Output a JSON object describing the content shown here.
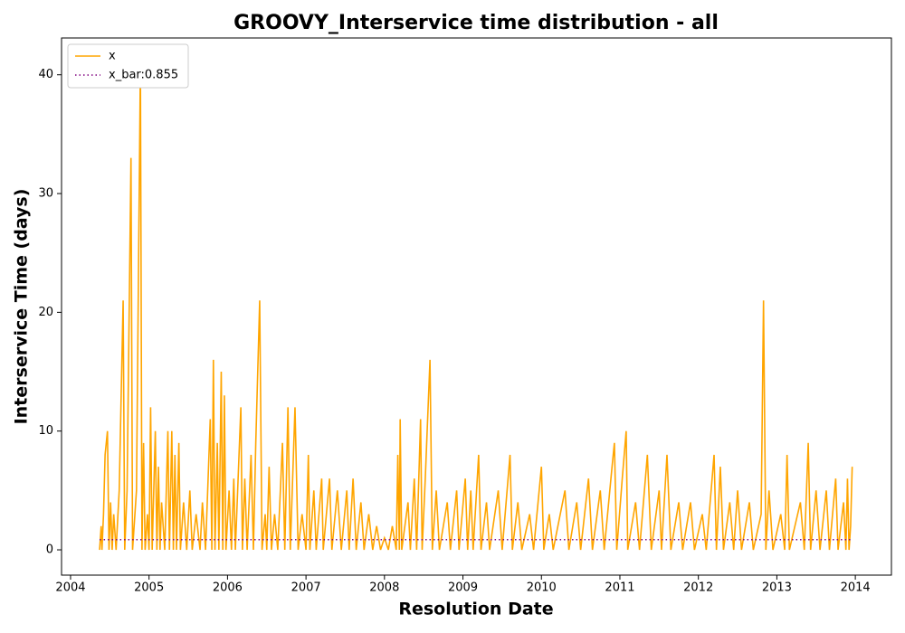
{
  "chart_data": {
    "type": "line",
    "title": "GROOVY_Interservice time distribution - all",
    "xlabel": "Resolution Date",
    "ylabel": "Interservice Time (days)",
    "xlim": [
      2003.885,
      2014.46
    ],
    "ylim": [
      -2.13,
      43.1
    ],
    "xticks": [
      2004,
      2005,
      2006,
      2007,
      2008,
      2009,
      2010,
      2011,
      2012,
      2013,
      2014
    ],
    "yticks": [
      0,
      10,
      20,
      30,
      40
    ],
    "legend": "upper left",
    "series": [
      {
        "name": "x",
        "color": "#ffa500",
        "style": "solid",
        "x": [
          2004.37,
          2004.39,
          2004.4,
          2004.42,
          2004.44,
          2004.47,
          2004.49,
          2004.51,
          2004.53,
          2004.55,
          2004.58,
          2004.62,
          2004.67,
          2004.69,
          2004.72,
          2004.77,
          2004.79,
          2004.84,
          2004.89,
          2004.91,
          2004.93,
          2004.95,
          2004.98,
          2005.0,
          2005.02,
          2005.04,
          2005.06,
          2005.08,
          2005.1,
          2005.12,
          2005.14,
          2005.16,
          2005.2,
          2005.24,
          2005.26,
          2005.29,
          2005.31,
          2005.33,
          2005.35,
          2005.38,
          2005.4,
          2005.44,
          2005.48,
          2005.52,
          2005.55,
          2005.6,
          2005.65,
          2005.68,
          2005.72,
          2005.78,
          2005.8,
          2005.82,
          2005.84,
          2005.87,
          2005.89,
          2005.92,
          2005.94,
          2005.96,
          2005.98,
          2006.02,
          2006.05,
          2006.08,
          2006.1,
          2006.17,
          2006.19,
          2006.22,
          2006.25,
          2006.3,
          2006.33,
          2006.36,
          2006.41,
          2006.44,
          2006.48,
          2006.5,
          2006.53,
          2006.56,
          2006.6,
          2006.64,
          2006.7,
          2006.73,
          2006.77,
          2006.8,
          2006.86,
          2006.9,
          2006.95,
          2007.0,
          2007.03,
          2007.05,
          2007.1,
          2007.13,
          2007.2,
          2007.22,
          2007.3,
          2007.33,
          2007.4,
          2007.45,
          2007.52,
          2007.55,
          2007.6,
          2007.64,
          2007.7,
          2007.74,
          2007.8,
          2007.85,
          2007.9,
          2007.95,
          2008.0,
          2008.05,
          2008.1,
          2008.15,
          2008.17,
          2008.19,
          2008.2,
          2008.22,
          2008.3,
          2008.33,
          2008.38,
          2008.41,
          2008.46,
          2008.48,
          2008.52,
          2008.58,
          2008.61,
          2008.66,
          2008.7,
          2008.8,
          2008.84,
          2008.92,
          2008.95,
          2009.03,
          2009.06,
          2009.1,
          2009.13,
          2009.2,
          2009.23,
          2009.3,
          2009.34,
          2009.45,
          2009.5,
          2009.6,
          2009.63,
          2009.7,
          2009.75,
          2009.85,
          2009.9,
          2010.0,
          2010.03,
          2010.1,
          2010.15,
          2010.3,
          2010.35,
          2010.45,
          2010.5,
          2010.6,
          2010.65,
          2010.75,
          2010.8,
          2010.9,
          2010.93,
          2010.96,
          2011.03,
          2011.08,
          2011.1,
          2011.2,
          2011.25,
          2011.35,
          2011.4,
          2011.5,
          2011.53,
          2011.6,
          2011.65,
          2011.75,
          2011.8,
          2011.9,
          2011.95,
          2012.05,
          2012.1,
          2012.2,
          2012.23,
          2012.28,
          2012.32,
          2012.4,
          2012.45,
          2012.5,
          2012.55,
          2012.65,
          2012.7,
          2012.8,
          2012.83,
          2012.86,
          2012.9,
          2012.95,
          2013.05,
          2013.1,
          2013.13,
          2013.16,
          2013.3,
          2013.35,
          2013.4,
          2013.43,
          2013.5,
          2013.55,
          2013.63,
          2013.67,
          2013.75,
          2013.78,
          2013.85,
          2013.88,
          2013.9,
          2013.92,
          2013.94,
          2013.96
        ],
        "values": [
          0,
          2,
          0,
          3,
          8,
          10,
          0,
          4,
          0,
          3,
          0,
          5,
          21,
          0,
          5,
          33,
          0,
          5,
          41,
          0,
          9,
          0,
          3,
          0,
          12,
          0,
          5,
          10,
          0,
          7,
          0,
          4,
          0,
          10,
          0,
          10,
          0,
          8,
          0,
          9,
          0,
          4,
          0,
          5,
          0,
          3,
          0,
          4,
          0,
          11,
          0,
          16,
          0,
          9,
          0,
          15,
          0,
          13,
          0,
          5,
          0,
          6,
          0,
          12,
          0,
          6,
          0,
          8,
          0,
          9,
          21,
          0,
          3,
          0,
          7,
          0,
          3,
          0,
          9,
          0,
          12,
          0,
          12,
          0,
          3,
          0,
          8,
          0,
          5,
          0,
          6,
          0,
          6,
          0,
          5,
          0,
          5,
          0,
          6,
          0,
          4,
          0,
          3,
          0,
          2,
          0,
          1,
          0,
          2,
          0,
          8,
          0,
          11,
          0,
          4,
          0,
          6,
          0,
          11,
          0,
          6,
          16,
          0,
          5,
          0,
          4,
          0,
          5,
          0,
          6,
          0,
          5,
          0,
          8,
          0,
          4,
          0,
          5,
          0,
          8,
          0,
          4,
          0,
          3,
          0,
          7,
          0,
          3,
          0,
          5,
          0,
          4,
          0,
          6,
          0,
          5,
          0,
          7,
          9,
          0,
          6,
          10,
          0,
          4,
          0,
          8,
          0,
          5,
          0,
          8,
          0,
          4,
          0,
          4,
          0,
          3,
          0,
          8,
          0,
          7,
          0,
          4,
          0,
          5,
          0,
          4,
          0,
          3,
          21,
          0,
          5,
          0,
          3,
          0,
          8,
          0,
          4,
          0,
          9,
          0,
          5,
          0,
          5,
          0,
          6,
          0,
          4,
          0,
          6,
          0,
          2,
          7
        ]
      },
      {
        "name": "x_bar:0.855",
        "color": "#800080",
        "style": "dotted",
        "x": [
          2004.37,
          2013.96
        ],
        "values": [
          0.855,
          0.855
        ]
      }
    ]
  }
}
